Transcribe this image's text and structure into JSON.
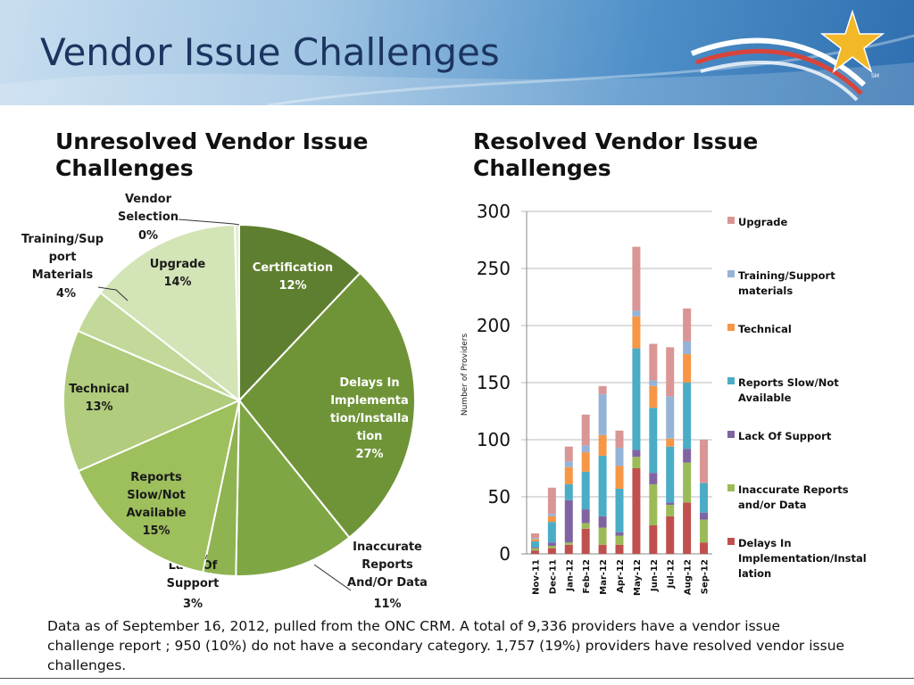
{
  "header": {
    "title": "Vendor Issue Challenges",
    "logo_mark": "SM",
    "colors": {
      "title": "#1c3560",
      "star": "#f2b827"
    }
  },
  "footnote": "Data as of September 16, 2012, pulled from the ONC CRM. A total of 9,336 providers have a vendor issue challenge report ; 950 (10%) do not have a secondary category.  1,757 (19%) providers have resolved vendor issue challenges.",
  "chart_data": [
    {
      "type": "pie",
      "title": "Unresolved Vendor Issue Challenges",
      "start": "top, clockwise",
      "slices": [
        {
          "label": "Certification",
          "percent_label": "12%",
          "value": 12,
          "color": "#5e7f2f",
          "text_color": "#ffffff",
          "label_lines": [
            "Certification"
          ]
        },
        {
          "label": "Delays In Implementation/Installation",
          "percent_label": "27%",
          "value": 27,
          "color": "#6f9438",
          "text_color": "#ffffff",
          "label_lines": [
            "Delays In",
            "Implementa",
            "tion/Installa",
            "tion"
          ]
        },
        {
          "label": "Inaccurate Reports And/Or Data",
          "percent_label": "11%",
          "value": 11,
          "color": "#7fa644",
          "text_color": "#1a1a1a",
          "label_lines": [
            "Inaccurate",
            "Reports",
            "And/Or Data"
          ]
        },
        {
          "label": "Lack Of Support",
          "percent_label": "3%",
          "value": 3,
          "color": "#8eb350",
          "text_color": "#1a1a1a",
          "label_lines": [
            "Lack Of",
            "Support"
          ]
        },
        {
          "label": "Reports Slow/Not Available",
          "percent_label": "15%",
          "value": 15,
          "color": "#9dbf5c",
          "text_color": "#1a1a1a",
          "label_lines": [
            "Reports",
            "Slow/Not",
            "Available"
          ]
        },
        {
          "label": "Technical",
          "percent_label": "13%",
          "value": 13,
          "color": "#b0cc7c",
          "text_color": "#1a1a1a",
          "label_lines": [
            "Technical"
          ]
        },
        {
          "label": "Training/Support Materials",
          "percent_label": "4%",
          "value": 4,
          "color": "#c2d99a",
          "text_color": "#1a1a1a",
          "label_lines": [
            "Training/Sup",
            "port",
            "Materials"
          ]
        },
        {
          "label": "Upgrade",
          "percent_label": "14%",
          "value": 14,
          "color": "#d3e4b6",
          "text_color": "#1a1a1a",
          "label_lines": [
            "Upgrade"
          ]
        },
        {
          "label": "Vendor Selection",
          "percent_label": "0%",
          "value": 0.4,
          "color": "#e2edcf",
          "text_color": "#1a1a1a",
          "label_lines": [
            "Vendor",
            "Selection"
          ]
        }
      ]
    },
    {
      "type": "bar",
      "stacked": true,
      "title": "Resolved Vendor Issue Challenges",
      "ylabel": "Number of Providers",
      "ylim": [
        0,
        300
      ],
      "yticks": [
        0,
        50,
        100,
        150,
        200,
        250,
        300
      ],
      "grid": true,
      "legend_position": "right",
      "categories": [
        "Nov-11",
        "Dec-11",
        "Jan-12",
        "Feb-12",
        "Mar-12",
        "Apr-12",
        "May-12",
        "Jun-12",
        "Jul-12",
        "Aug-12",
        "Sep-12"
      ],
      "series": [
        {
          "name": "Delays In Implementation/Installation",
          "legend_lines": [
            "Delays In",
            "Implementation/Instal",
            "lation"
          ],
          "color": "#c0504d",
          "values": [
            3,
            5,
            8,
            22,
            8,
            8,
            75,
            25,
            33,
            45,
            10
          ]
        },
        {
          "name": "Inaccurate Reports and/or Data",
          "legend_lines": [
            "Inaccurate Reports",
            "and/or Data"
          ],
          "color": "#9bbb59",
          "values": [
            2,
            2,
            2,
            5,
            15,
            8,
            10,
            36,
            10,
            35,
            20
          ]
        },
        {
          "name": "Lack Of Support",
          "legend_lines": [
            "Lack Of Support"
          ],
          "color": "#8064a2",
          "values": [
            1,
            3,
            37,
            12,
            10,
            3,
            6,
            10,
            2,
            12,
            6
          ]
        },
        {
          "name": "Reports Slow/Not Available",
          "legend_lines": [
            "Reports Slow/Not",
            "Available"
          ],
          "color": "#4bacc6",
          "values": [
            5,
            18,
            14,
            33,
            53,
            38,
            89,
            57,
            49,
            58,
            26
          ]
        },
        {
          "name": "Technical",
          "legend_lines": [
            "Technical"
          ],
          "color": "#f79646",
          "values": [
            2,
            5,
            15,
            17,
            18,
            20,
            28,
            19,
            7,
            25,
            0
          ]
        },
        {
          "name": "Training/Support materials",
          "legend_lines": [
            "Training/Support",
            "materials"
          ],
          "color": "#95b3d7",
          "values": [
            1,
            2,
            5,
            6,
            36,
            16,
            5,
            5,
            37,
            11,
            0
          ]
        },
        {
          "name": "Upgrade",
          "legend_lines": [
            "Upgrade"
          ],
          "color": "#d99694",
          "values": [
            4,
            23,
            13,
            27,
            7,
            15,
            56,
            32,
            43,
            29,
            38
          ]
        }
      ],
      "x_values": [
        {
          "category": "Nov-11",
          "value": 18
        },
        {
          "category": "Dec-11",
          "value": 58
        },
        {
          "category": "Jan-12",
          "value": 94
        },
        {
          "category": "Feb-12",
          "value": 122
        },
        {
          "category": "Mar-12",
          "value": 147
        },
        {
          "category": "Apr-12",
          "value": 108
        },
        {
          "category": "May-12",
          "value": 269
        },
        {
          "category": "Jun-12",
          "value": 184
        },
        {
          "category": "Jul-12",
          "value": 181
        },
        {
          "category": "Aug-12",
          "value": 215
        },
        {
          "category": "Sep-12",
          "value": 100
        }
      ]
    }
  ]
}
